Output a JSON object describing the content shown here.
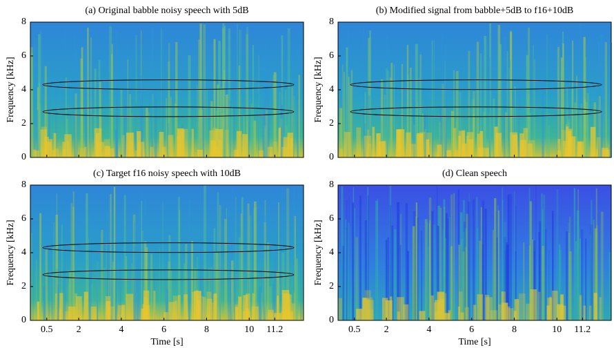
{
  "chart_data": [
    {
      "type": "spectrogram",
      "title": "(a) Original babble noisy speech with 5dB",
      "ylabel": "Frequency [kHz]",
      "xlim": [
        -0.27,
        12.55
      ],
      "ylim": [
        0,
        8
      ],
      "yticks": [
        0,
        2,
        4,
        6,
        8
      ],
      "xticks": [
        0.5,
        2,
        4,
        6,
        8,
        10,
        11.2
      ]
    },
    {
      "type": "spectrogram",
      "title": "(b) Modified signal from babble+5dB to f16+10dB",
      "ylabel": "Frequency [kHz]",
      "xlim": [
        -0.27,
        12.55
      ],
      "ylim": [
        0,
        8
      ],
      "yticks": [
        0,
        2,
        4,
        6,
        8
      ],
      "xticks": [
        0.5,
        2,
        4,
        6,
        8,
        10,
        11.2
      ]
    },
    {
      "type": "spectrogram",
      "title": "(c) Target f16 noisy speech with 10dB",
      "ylabel": "Frequency [kHz]",
      "xlabel": "Time [s]",
      "xlim": [
        -0.27,
        12.55
      ],
      "ylim": [
        0,
        8
      ],
      "yticks": [
        0,
        2,
        4,
        6,
        8
      ],
      "xticks": [
        0.5,
        2,
        4,
        6,
        8,
        10,
        11.2
      ]
    },
    {
      "type": "spectrogram",
      "title": "(d) Clean speech",
      "ylabel": "Frequency [kHz]",
      "xlabel": "Time [s]",
      "xlim": [
        -0.27,
        12.55
      ],
      "ylim": [
        0,
        8
      ],
      "yticks": [
        0,
        2,
        4,
        6,
        8
      ],
      "xticks": [
        0.5,
        2,
        4,
        6,
        8,
        10,
        11.2
      ]
    }
  ]
}
